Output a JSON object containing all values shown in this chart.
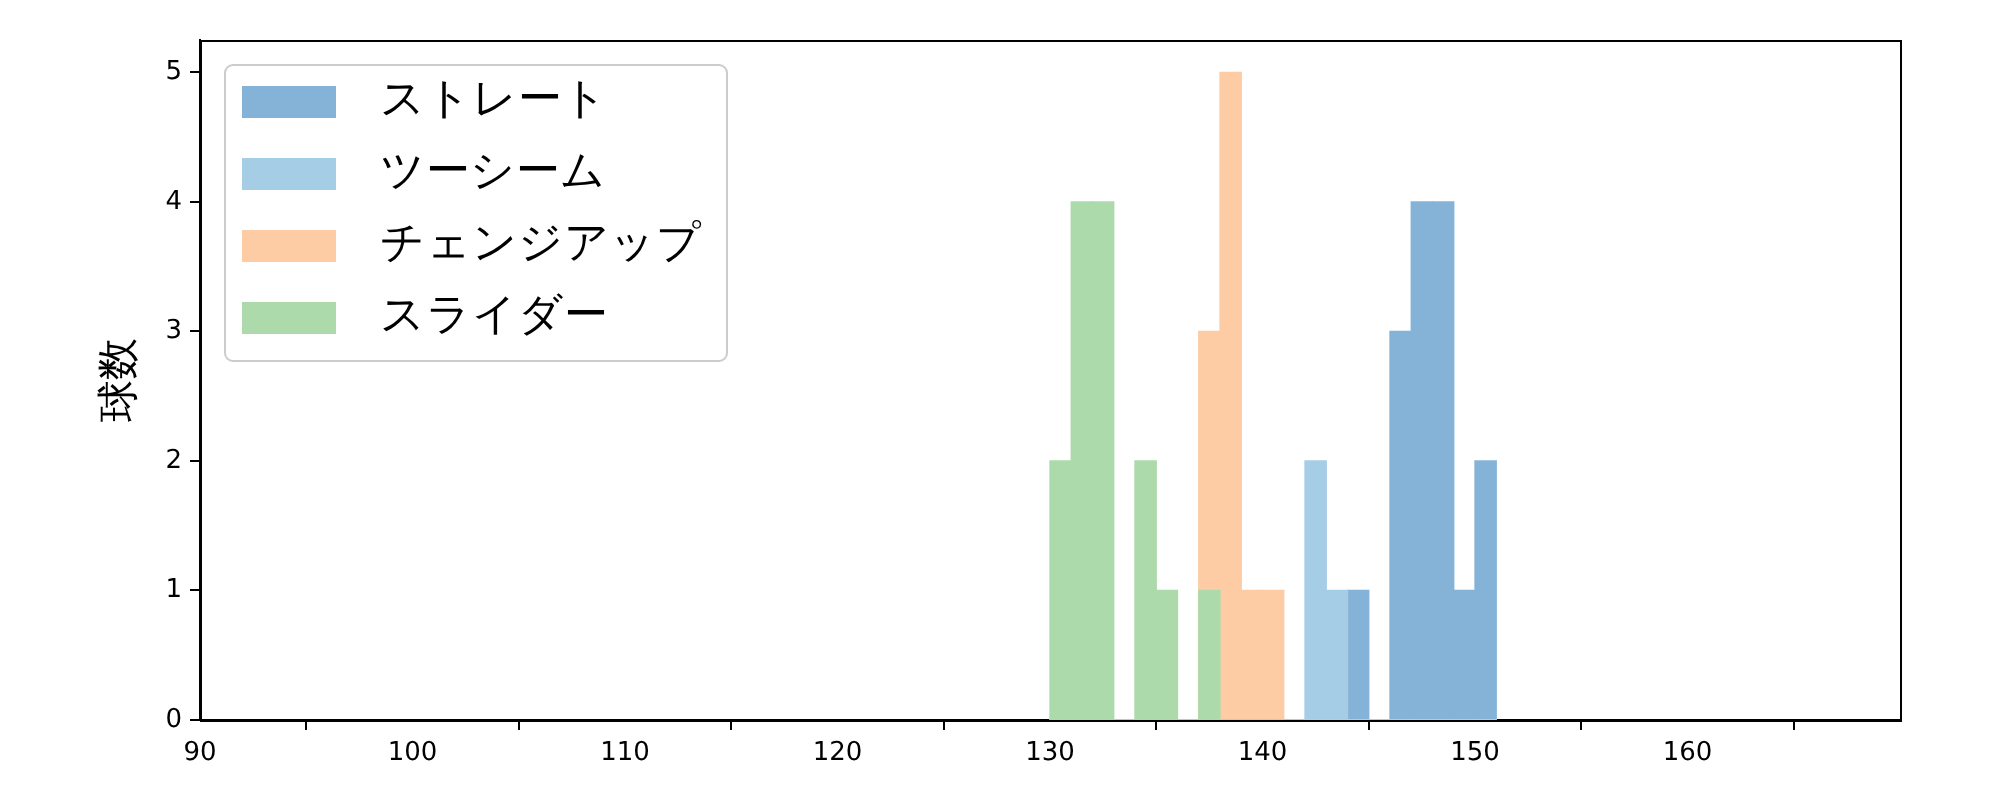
{
  "chart_data": {
    "type": "histogram",
    "ylabel": "球数",
    "bins": [
      130,
      131,
      132,
      133,
      134,
      135,
      136,
      137,
      138,
      139,
      140,
      141,
      142,
      143,
      144,
      145,
      146,
      147,
      148,
      149,
      150,
      151
    ],
    "series": [
      {
        "name": "ストレート",
        "color": "#84b3d7",
        "values": [
          0,
          0,
          0,
          0,
          0,
          0,
          0,
          0,
          0,
          0,
          0,
          0,
          0,
          0,
          1,
          0,
          3,
          4,
          4,
          1,
          2
        ]
      },
      {
        "name": "ツーシーム",
        "color": "#a6cde6",
        "values": [
          0,
          0,
          0,
          0,
          0,
          0,
          0,
          0,
          0,
          0,
          0,
          0,
          2,
          1,
          0,
          0,
          0,
          0,
          0,
          0,
          0
        ]
      },
      {
        "name": "チェンジアップ",
        "color": "#fdcca5",
        "values": [
          0,
          0,
          0,
          0,
          0,
          0,
          0,
          3,
          5,
          1,
          1,
          0,
          0,
          0,
          0,
          0,
          0,
          0,
          0,
          0,
          0
        ]
      },
      {
        "name": "スライダー",
        "color": "#acdaab",
        "values": [
          2,
          4,
          4,
          0,
          2,
          1,
          0,
          1,
          0,
          0,
          0,
          0,
          0,
          0,
          0,
          0,
          0,
          0,
          0,
          0,
          0
        ]
      }
    ],
    "xlim": [
      90,
      170
    ],
    "xticks": [
      90,
      100,
      110,
      120,
      130,
      140,
      150,
      160
    ],
    "ylim": [
      0,
      5.25
    ],
    "yticks": [
      0,
      1,
      2,
      3,
      4,
      5
    ],
    "legend": "top left"
  }
}
